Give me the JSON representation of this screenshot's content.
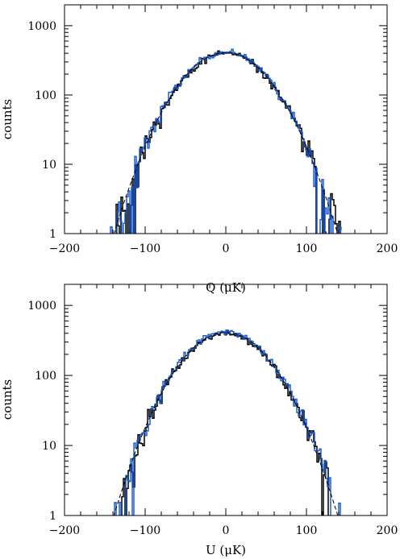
{
  "chart_data": [
    {
      "type": "line",
      "panel": "top",
      "xlabel": "Q (μK)",
      "ylabel": "counts",
      "xlim": [
        -200,
        200
      ],
      "ylim": [
        1,
        2000
      ],
      "yscale": "log",
      "x_ticks": [
        "−200",
        "−100",
        "0",
        "100",
        "200"
      ],
      "y_ticks": [
        "1",
        "10",
        "100",
        "1000"
      ],
      "grid": false,
      "series": [
        {
          "color": "#000000",
          "style": "histogram",
          "sigma": 40,
          "peak": 400,
          "range": [
            -150,
            145
          ],
          "seed": 11
        },
        {
          "color": "#1f5fd0",
          "style": "histogram",
          "sigma": 40,
          "peak": 420,
          "range": [
            -145,
            142
          ],
          "seed": 23
        },
        {
          "color": "#000000",
          "style": "dashed",
          "sigma": 40,
          "peak": 410,
          "range": [
            -150,
            150
          ]
        }
      ]
    },
    {
      "type": "line",
      "panel": "bottom",
      "xlabel": "U (μK)",
      "ylabel": "counts",
      "xlim": [
        -200,
        200
      ],
      "ylim": [
        1,
        2000
      ],
      "yscale": "log",
      "x_ticks": [
        "−200",
        "−100",
        "0",
        "100",
        "200"
      ],
      "y_ticks": [
        "1",
        "10",
        "100",
        "1000"
      ],
      "grid": false,
      "series": [
        {
          "color": "#000000",
          "style": "histogram",
          "sigma": 40,
          "peak": 400,
          "range": [
            -135,
            128
          ],
          "seed": 37
        },
        {
          "color": "#1f5fd0",
          "style": "histogram",
          "sigma": 40,
          "peak": 420,
          "range": [
            -150,
            148
          ],
          "seed": 53
        },
        {
          "color": "#000000",
          "style": "dashed",
          "sigma": 40,
          "peak": 410,
          "range": [
            -150,
            150
          ]
        }
      ]
    }
  ]
}
